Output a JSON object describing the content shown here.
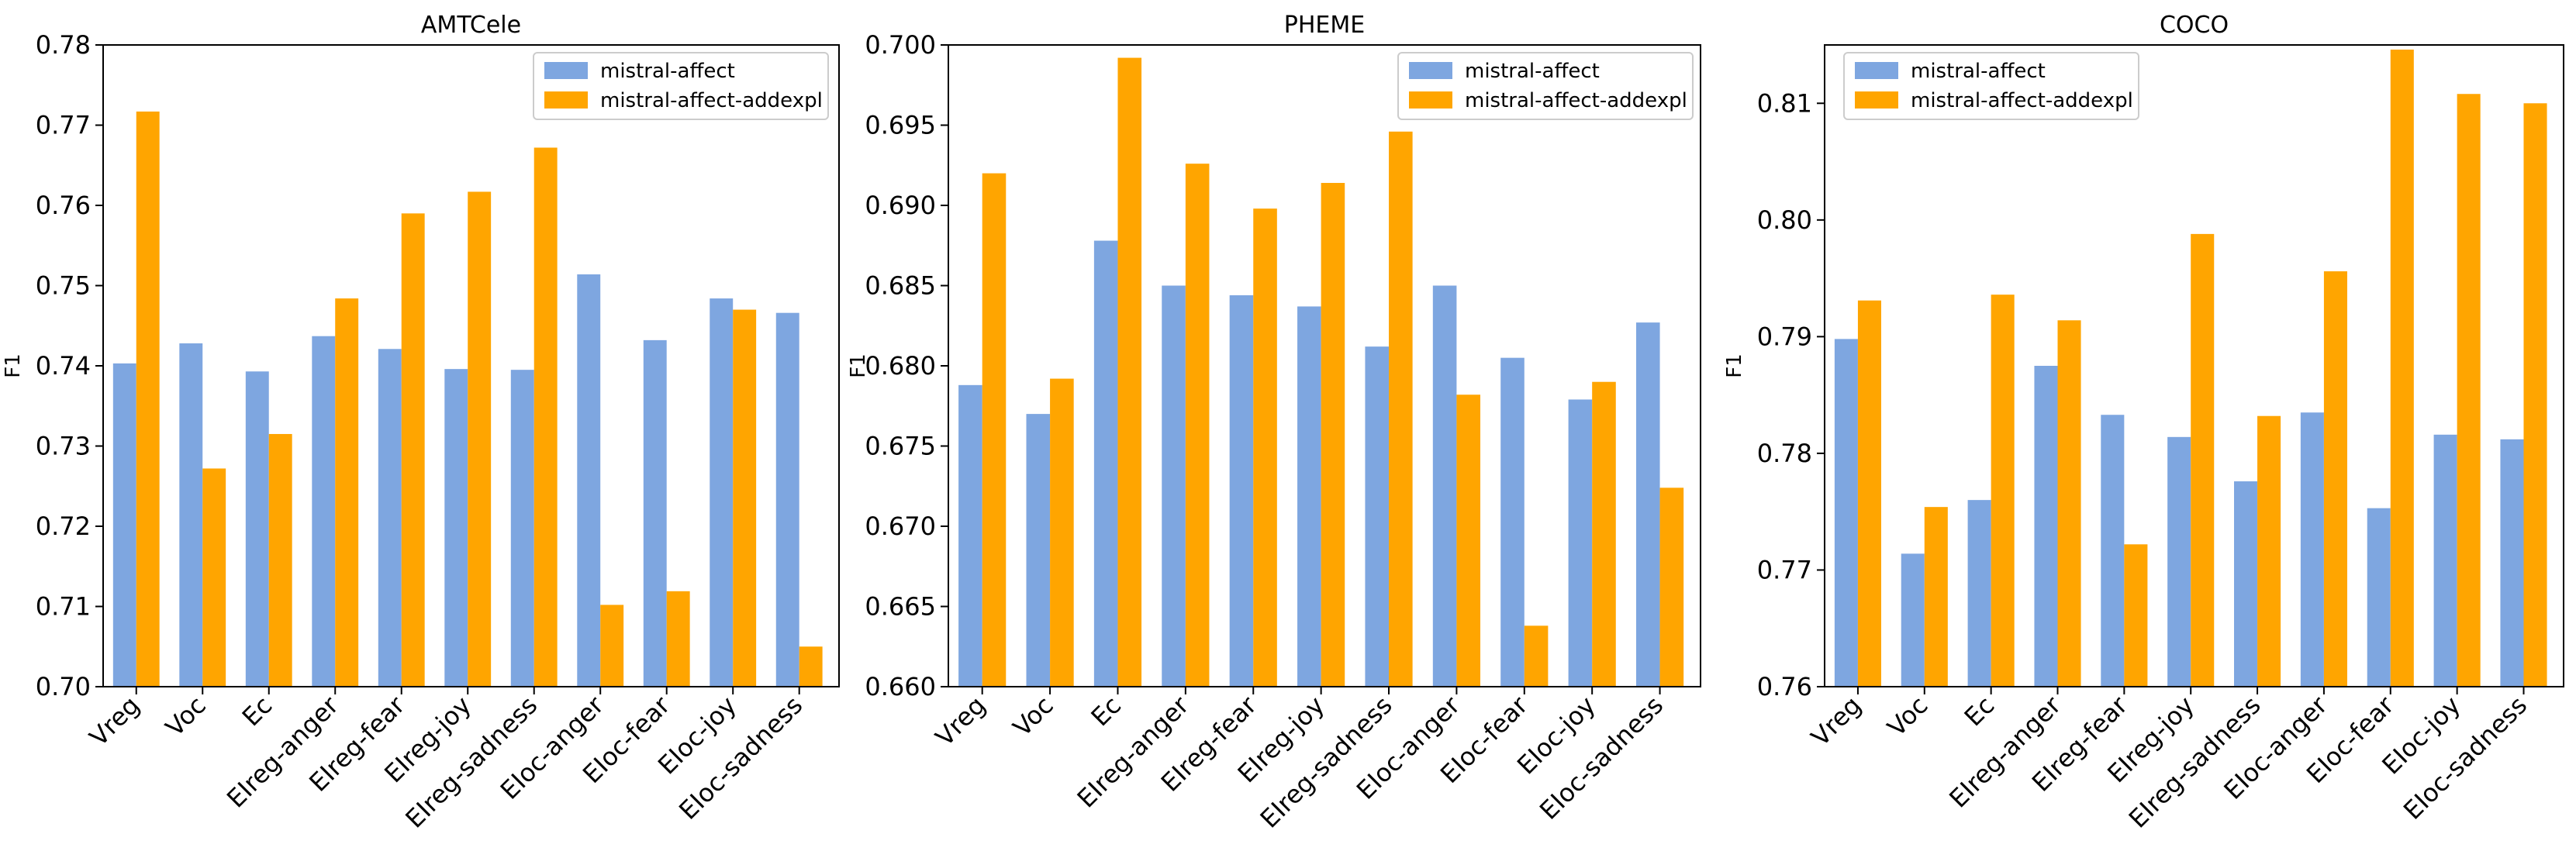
{
  "colors": {
    "series_a": "#7ea6e0",
    "series_b": "#ffa500"
  },
  "chart_data": [
    {
      "type": "bar",
      "title": "AMTCele",
      "xlabel": "",
      "ylabel": "F1",
      "ylim": [
        0.7,
        0.78
      ],
      "yticks": [
        0.7,
        0.71,
        0.72,
        0.73,
        0.74,
        0.75,
        0.76,
        0.77,
        0.78
      ],
      "ytick_labels": [
        "0.70",
        "0.71",
        "0.72",
        "0.73",
        "0.74",
        "0.75",
        "0.76",
        "0.77",
        "0.78"
      ],
      "legend_position": "top-right",
      "categories": [
        "Vreg",
        "Voc",
        "Ec",
        "EIreg-anger",
        "EIreg-fear",
        "EIreg-joy",
        "EIreg-sadness",
        "EIoc-anger",
        "EIoc-fear",
        "EIoc-joy",
        "EIoc-sadness"
      ],
      "series": [
        {
          "name": "mistral-affect",
          "values": [
            0.7403,
            0.7428,
            0.7393,
            0.7437,
            0.7421,
            0.7396,
            0.7395,
            0.7514,
            0.7432,
            0.7484,
            0.7466
          ]
        },
        {
          "name": "mistral-affect-addexpl",
          "values": [
            0.7717,
            0.7272,
            0.7315,
            0.7484,
            0.759,
            0.7617,
            0.7672,
            0.7102,
            0.7119,
            0.747,
            0.705
          ]
        }
      ]
    },
    {
      "type": "bar",
      "title": "PHEME",
      "xlabel": "",
      "ylabel": "F1",
      "ylim": [
        0.66,
        0.7
      ],
      "yticks": [
        0.66,
        0.665,
        0.67,
        0.675,
        0.68,
        0.685,
        0.69,
        0.695,
        0.7
      ],
      "ytick_labels": [
        "0.660",
        "0.665",
        "0.670",
        "0.675",
        "0.680",
        "0.685",
        "0.690",
        "0.695",
        "0.700"
      ],
      "legend_position": "top-right",
      "categories": [
        "Vreg",
        "Voc",
        "Ec",
        "EIreg-anger",
        "EIreg-fear",
        "EIreg-joy",
        "EIreg-sadness",
        "EIoc-anger",
        "EIoc-fear",
        "EIoc-joy",
        "EIoc-sadness"
      ],
      "series": [
        {
          "name": "mistral-affect",
          "values": [
            0.6788,
            0.677,
            0.6878,
            0.685,
            0.6844,
            0.6837,
            0.6812,
            0.685,
            0.6805,
            0.6779,
            0.6827
          ]
        },
        {
          "name": "mistral-affect-addexpl",
          "values": [
            0.692,
            0.6792,
            0.6992,
            0.6926,
            0.6898,
            0.6914,
            0.6946,
            0.6782,
            0.6638,
            0.679,
            0.6724
          ]
        }
      ]
    },
    {
      "type": "bar",
      "title": "COCO",
      "xlabel": "",
      "ylabel": "F1",
      "ylim": [
        0.76,
        0.815
      ],
      "yticks": [
        0.76,
        0.77,
        0.78,
        0.79,
        0.8,
        0.81
      ],
      "ytick_labels": [
        "0.76",
        "0.77",
        "0.78",
        "0.79",
        "0.80",
        "0.81"
      ],
      "legend_position": "top-left",
      "categories": [
        "Vreg",
        "Voc",
        "Ec",
        "EIreg-anger",
        "EIreg-fear",
        "EIreg-joy",
        "EIreg-sadness",
        "EIoc-anger",
        "EIoc-fear",
        "EIoc-joy",
        "EIoc-sadness"
      ],
      "series": [
        {
          "name": "mistral-affect",
          "values": [
            0.7898,
            0.7714,
            0.776,
            0.7875,
            0.7833,
            0.7814,
            0.7776,
            0.7835,
            0.7753,
            0.7816,
            0.7812
          ]
        },
        {
          "name": "mistral-affect-addexpl",
          "values": [
            0.7931,
            0.7754,
            0.7936,
            0.7914,
            0.7722,
            0.7988,
            0.7832,
            0.7956,
            0.8146,
            0.8108,
            0.81
          ]
        }
      ]
    }
  ]
}
